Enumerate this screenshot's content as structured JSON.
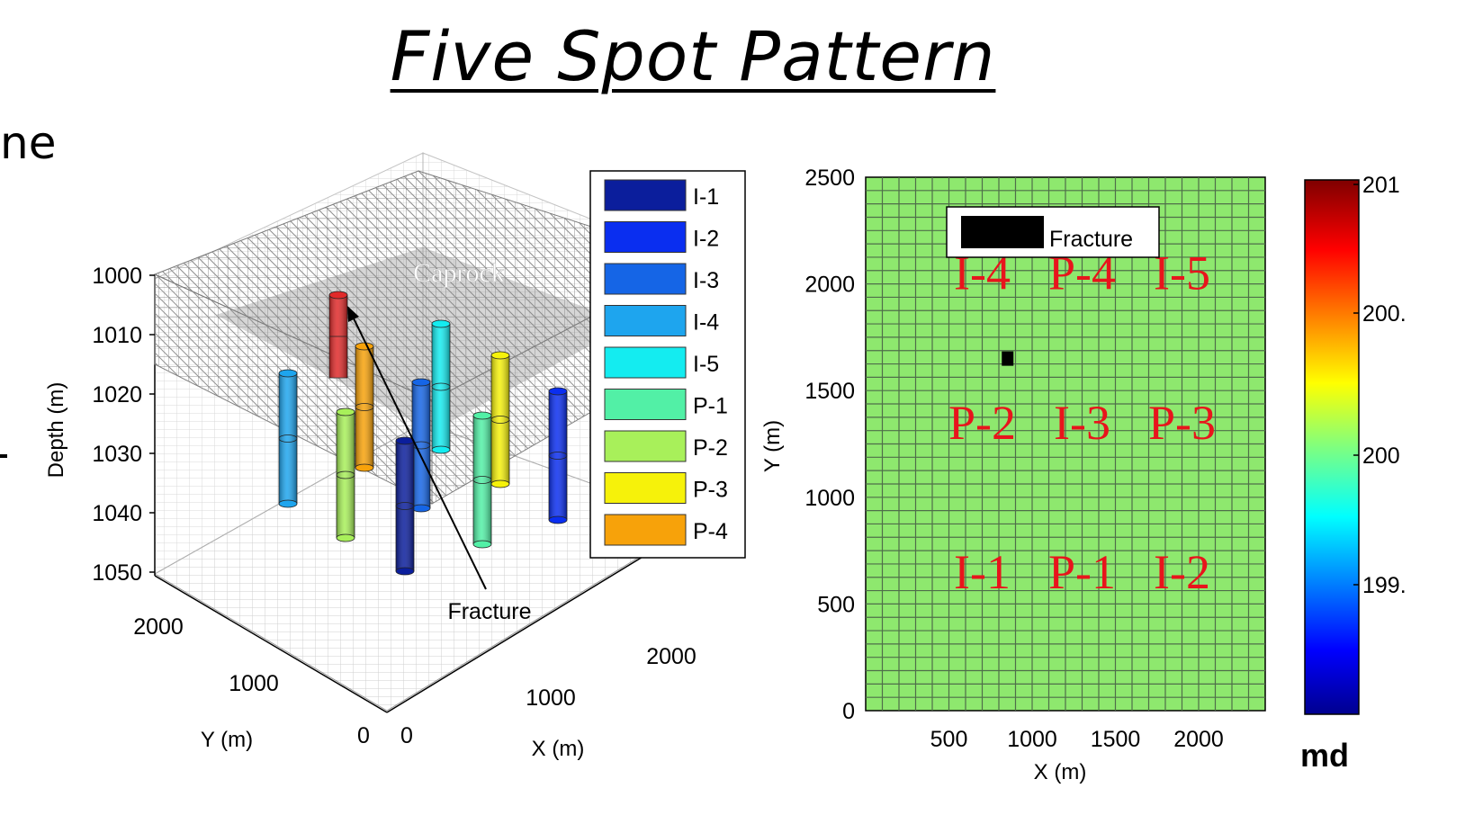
{
  "slide": {
    "title": "Five Spot Pattern",
    "left_edge_text": "ne"
  },
  "chart_data": [
    {
      "type": "scatter",
      "title": "",
      "xlabel": "X (m)",
      "ylabel": "Y (m)",
      "zlabel": "Depth (m)",
      "z_ticks": [
        "1000",
        "1010",
        "1020",
        "1030",
        "1040",
        "1050"
      ],
      "y_ticks": [
        "2000",
        "1000",
        "0"
      ],
      "x_ticks": [
        "0",
        "1000",
        "2000"
      ],
      "annotations": [
        "Caprock",
        "Fracture"
      ],
      "legend": {
        "placement": "top-right",
        "entries": [
          {
            "name": "I-1",
            "color": "#0b1e9c"
          },
          {
            "name": "I-2",
            "color": "#0a2ef0"
          },
          {
            "name": "I-3",
            "color": "#1565e6"
          },
          {
            "name": "I-4",
            "color": "#1ea5ee"
          },
          {
            "name": "I-5",
            "color": "#14ecf0"
          },
          {
            "name": "P-1",
            "color": "#52f0a6"
          },
          {
            "name": "P-2",
            "color": "#a8f05a"
          },
          {
            "name": "P-3",
            "color": "#f6f20a"
          },
          {
            "name": "P-4",
            "color": "#f7a20a"
          }
        ]
      },
      "fracture_color": "#e02a2a"
    },
    {
      "type": "heatmap",
      "xlabel": "X (m)",
      "ylabel": "Y (m)",
      "x_ticks": [
        "500",
        "1000",
        "1500",
        "2000"
      ],
      "y_ticks": [
        "0",
        "500",
        "1000",
        "1500",
        "2000",
        "2500"
      ],
      "xlim": [
        0,
        2400
      ],
      "ylim": [
        0,
        2500
      ],
      "grid": true,
      "fill_color": "#8ee86e",
      "legend": {
        "placement": "top",
        "entries": [
          "Fracture"
        ]
      },
      "fracture_cell": {
        "x": 850,
        "y": 1650
      },
      "well_labels": [
        {
          "label": "I-4",
          "x": 700,
          "y": 2050
        },
        {
          "label": "P-4",
          "x": 1300,
          "y": 2050
        },
        {
          "label": "I-5",
          "x": 1900,
          "y": 2050
        },
        {
          "label": "P-2",
          "x": 700,
          "y": 1350
        },
        {
          "label": "I-3",
          "x": 1300,
          "y": 1350
        },
        {
          "label": "P-3",
          "x": 1900,
          "y": 1350
        },
        {
          "label": "I-1",
          "x": 700,
          "y": 650
        },
        {
          "label": "P-1",
          "x": 1300,
          "y": 650
        },
        {
          "label": "I-2",
          "x": 1900,
          "y": 650
        }
      ],
      "colorbar": {
        "ticks": [
          "201",
          "200.",
          "200",
          "199."
        ],
        "unit": "md"
      }
    }
  ]
}
